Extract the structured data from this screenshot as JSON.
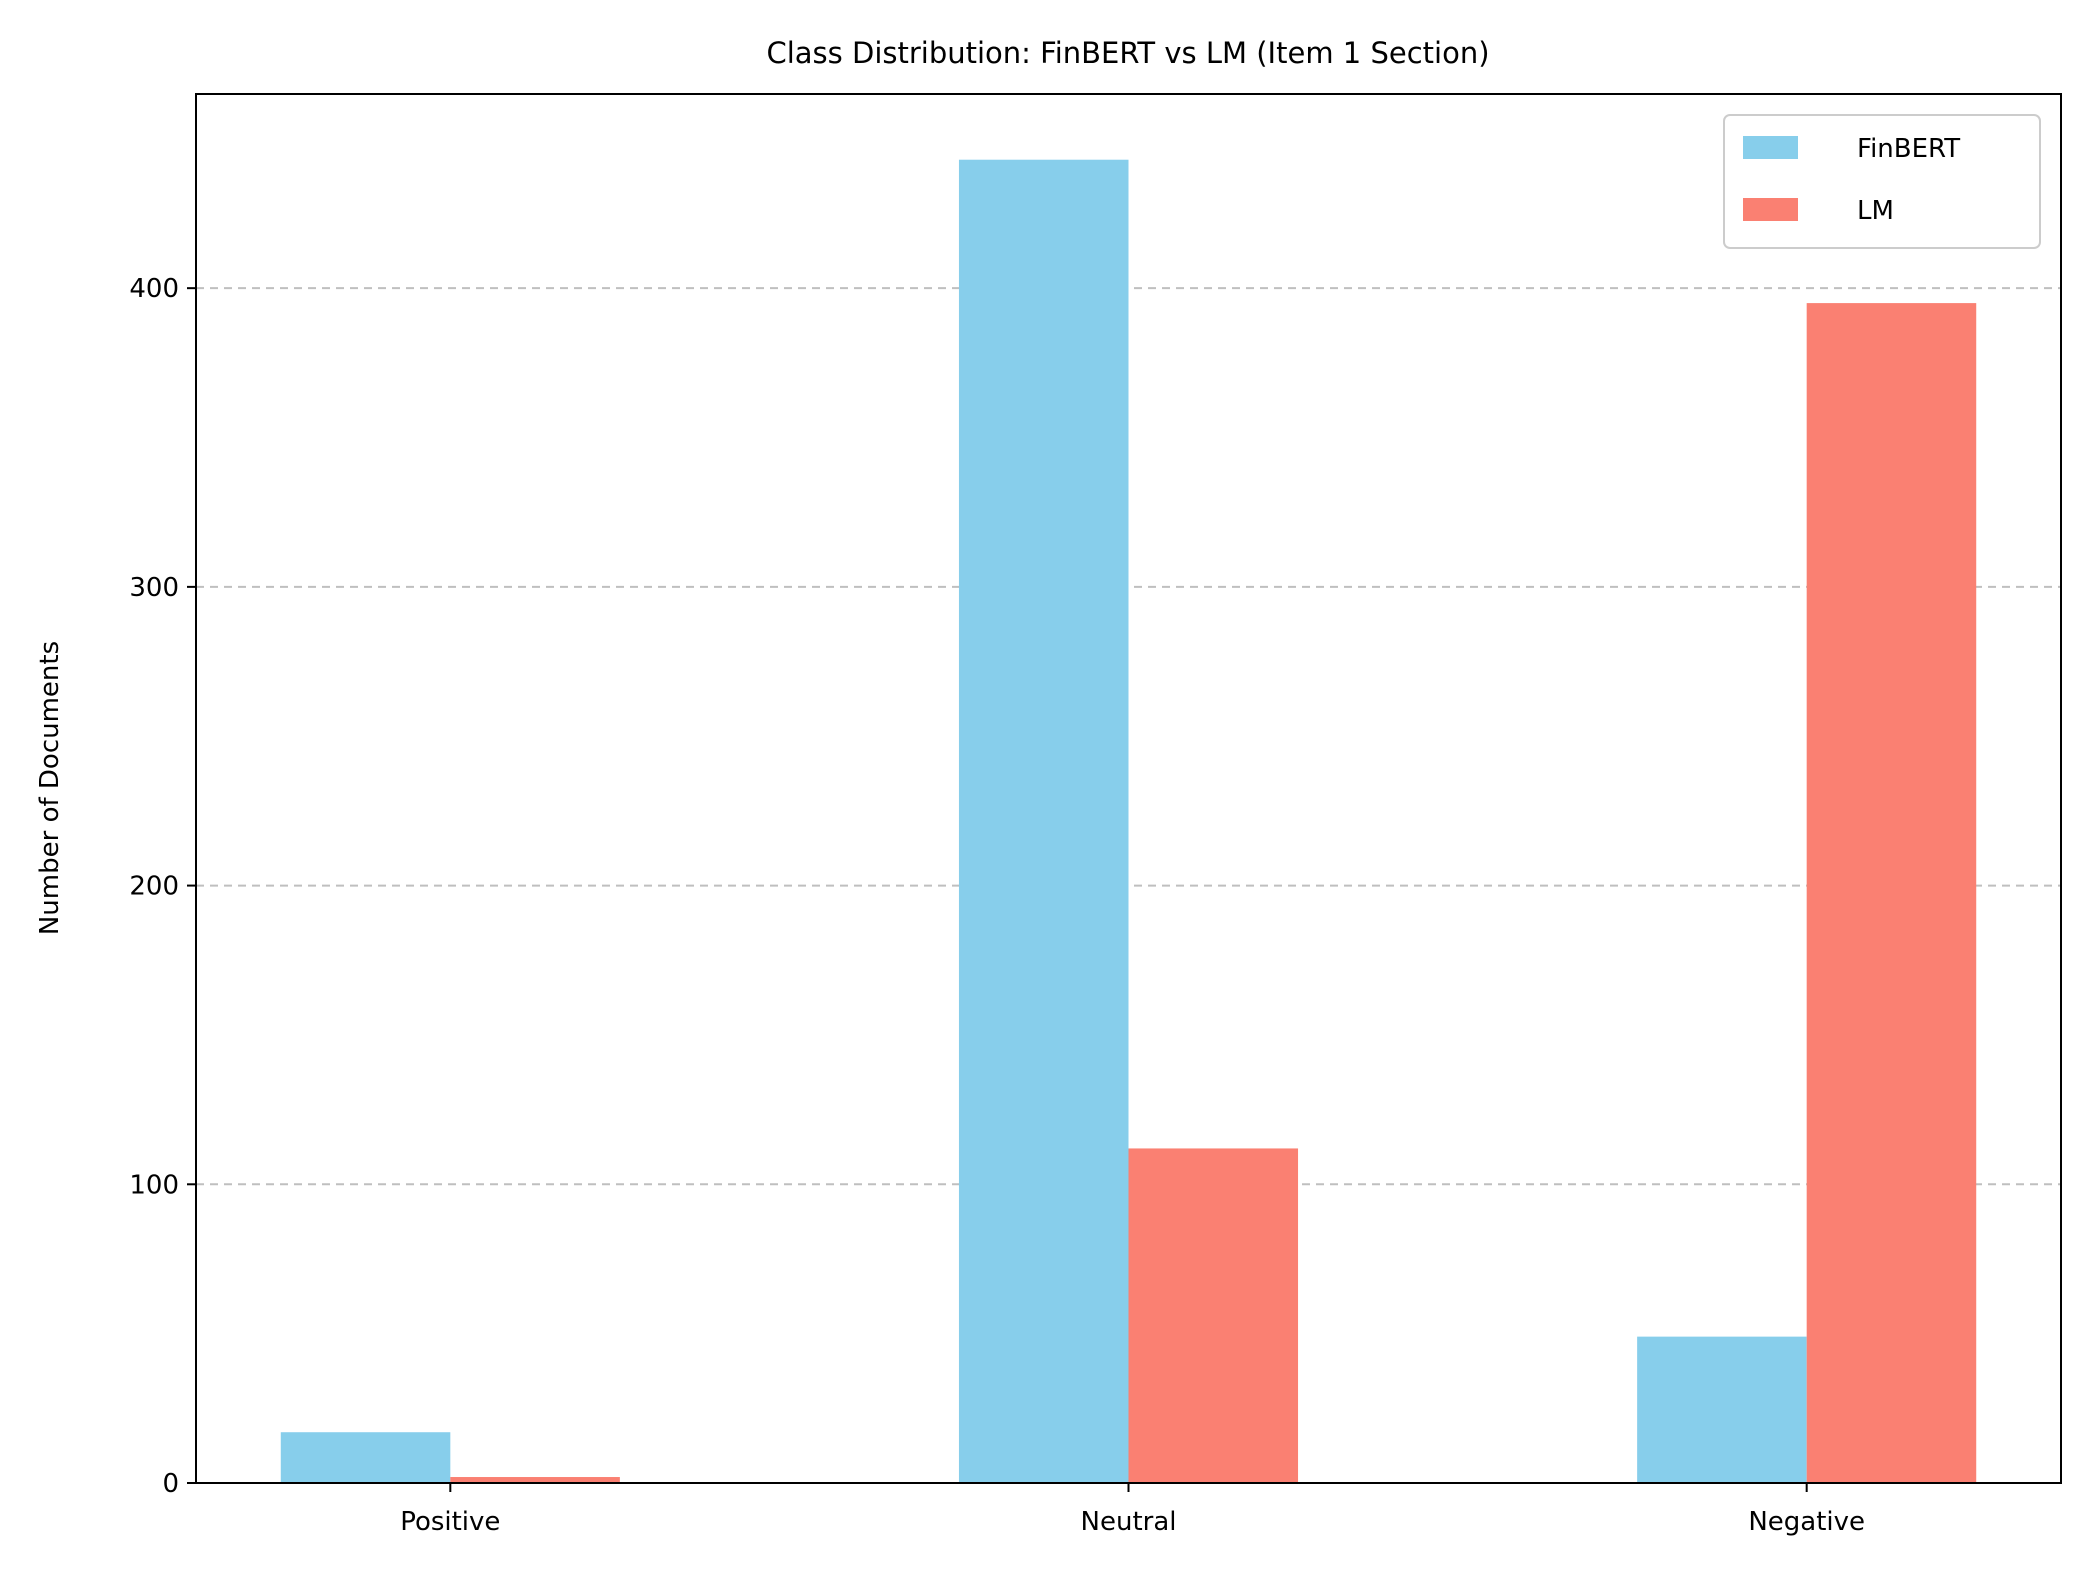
{
  "chart_data": {
    "type": "bar",
    "title": "Class Distribution: FinBERT vs LM (Item 1 Section)",
    "xlabel": "",
    "ylabel": "Number of Documents",
    "categories": [
      "Positive",
      "Neutral",
      "Negative"
    ],
    "series": [
      {
        "name": "FinBERT",
        "color": "#87CEEB",
        "values": [
          17,
          443,
          49
        ]
      },
      {
        "name": "LM",
        "color": "#FA8072",
        "values": [
          2,
          112,
          395
        ]
      }
    ],
    "ylim": [
      0,
      465
    ],
    "yticks": [
      0,
      100,
      200,
      300,
      400
    ],
    "grid": "y-dashed",
    "legend_position": "top-right"
  }
}
